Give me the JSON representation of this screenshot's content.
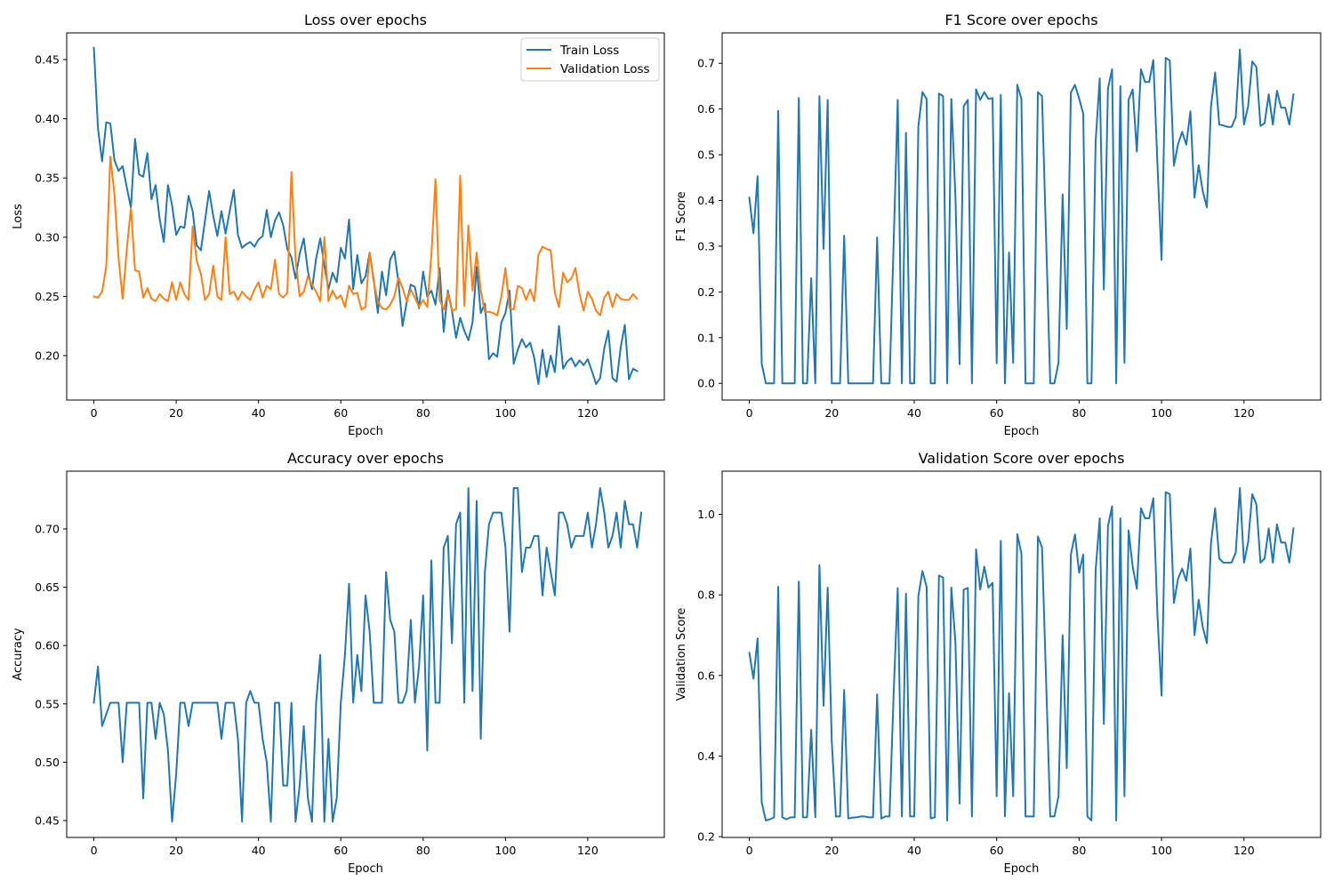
{
  "chart_data": [
    {
      "id": "loss",
      "type": "line",
      "title": "Loss over epochs",
      "xlabel": "Epoch",
      "ylabel": "Loss",
      "xlim": [
        -6.6,
        138.6
      ],
      "ylim": [
        0.1625,
        0.4725
      ],
      "xticks": [
        0,
        20,
        40,
        60,
        80,
        100,
        120
      ],
      "yticks": [
        0.2,
        0.25,
        0.3,
        0.35,
        0.4,
        0.45
      ],
      "ytick_labels": [
        "0.20",
        "0.25",
        "0.30",
        "0.35",
        "0.40",
        "0.45"
      ],
      "grid": false,
      "legend": "top-right",
      "series": [
        {
          "name": "Train Loss",
          "color": "#1f77b4",
          "values": [
            0.46,
            0.392,
            0.364,
            0.397,
            0.396,
            0.365,
            0.356,
            0.36,
            0.342,
            0.325,
            0.383,
            0.353,
            0.351,
            0.371,
            0.332,
            0.344,
            0.315,
            0.296,
            0.344,
            0.327,
            0.302,
            0.309,
            0.308,
            0.335,
            0.322,
            0.293,
            0.289,
            0.314,
            0.339,
            0.318,
            0.301,
            0.322,
            0.303,
            0.322,
            0.34,
            0.302,
            0.291,
            0.294,
            0.296,
            0.292,
            0.298,
            0.301,
            0.323,
            0.3,
            0.314,
            0.321,
            0.31,
            0.29,
            0.283,
            0.265,
            0.286,
            0.299,
            0.271,
            0.256,
            0.282,
            0.299,
            0.276,
            0.256,
            0.27,
            0.262,
            0.291,
            0.282,
            0.315,
            0.256,
            0.285,
            0.261,
            0.267,
            0.287,
            0.264,
            0.236,
            0.271,
            0.251,
            0.281,
            0.288,
            0.262,
            0.225,
            0.245,
            0.26,
            0.258,
            0.24,
            0.271,
            0.25,
            0.255,
            0.243,
            0.274,
            0.22,
            0.255,
            0.238,
            0.215,
            0.232,
            0.221,
            0.213,
            0.228,
            0.275,
            0.236,
            0.244,
            0.197,
            0.202,
            0.199,
            0.228,
            0.236,
            0.255,
            0.193,
            0.205,
            0.214,
            0.207,
            0.211,
            0.198,
            0.176,
            0.205,
            0.182,
            0.2,
            0.186,
            0.225,
            0.189,
            0.195,
            0.198,
            0.191,
            0.196,
            0.192,
            0.197,
            0.187,
            0.176,
            0.181,
            0.206,
            0.221,
            0.181,
            0.178,
            0.207,
            0.226,
            0.18,
            0.189,
            0.187
          ]
        },
        {
          "name": "Validation Loss",
          "color": "#ff7f0e",
          "values": [
            0.25,
            0.249,
            0.254,
            0.275,
            0.368,
            0.336,
            0.282,
            0.248,
            0.29,
            0.325,
            0.272,
            0.271,
            0.249,
            0.257,
            0.248,
            0.246,
            0.252,
            0.248,
            0.246,
            0.262,
            0.247,
            0.262,
            0.252,
            0.247,
            0.309,
            0.28,
            0.269,
            0.247,
            0.252,
            0.276,
            0.25,
            0.247,
            0.3,
            0.252,
            0.254,
            0.247,
            0.254,
            0.25,
            0.247,
            0.256,
            0.262,
            0.249,
            0.259,
            0.256,
            0.281,
            0.252,
            0.249,
            0.253,
            0.355,
            0.281,
            0.25,
            0.254,
            0.267,
            0.26,
            0.254,
            0.246,
            0.3,
            0.246,
            0.255,
            0.248,
            0.251,
            0.241,
            0.259,
            0.252,
            0.253,
            0.239,
            0.241,
            0.287,
            0.262,
            0.246,
            0.24,
            0.239,
            0.243,
            0.25,
            0.266,
            0.257,
            0.246,
            0.256,
            0.249,
            0.241,
            0.247,
            0.241,
            0.285,
            0.349,
            0.247,
            0.239,
            0.253,
            0.238,
            0.239,
            0.352,
            0.242,
            0.31,
            0.255,
            0.287,
            0.255,
            0.237,
            0.237,
            0.236,
            0.234,
            0.25,
            0.274,
            0.24,
            0.239,
            0.259,
            0.257,
            0.247,
            0.256,
            0.246,
            0.285,
            0.292,
            0.29,
            0.289,
            0.253,
            0.241,
            0.27,
            0.262,
            0.265,
            0.274,
            0.252,
            0.238,
            0.254,
            0.248,
            0.238,
            0.234,
            0.249,
            0.254,
            0.241,
            0.252,
            0.248,
            0.247,
            0.247,
            0.252,
            0.248
          ]
        }
      ]
    },
    {
      "id": "f1",
      "type": "line",
      "title": "F1 Score over epochs",
      "xlabel": "Epoch",
      "ylabel": "F1 Score",
      "xlim": [
        -6.6,
        138.6
      ],
      "ylim": [
        -0.0365,
        0.7665
      ],
      "xticks": [
        0,
        20,
        40,
        60,
        80,
        100,
        120
      ],
      "yticks": [
        0.0,
        0.1,
        0.2,
        0.3,
        0.4,
        0.5,
        0.6,
        0.7
      ],
      "ytick_labels": [
        "0.0",
        "0.1",
        "0.2",
        "0.3",
        "0.4",
        "0.5",
        "0.6",
        "0.7"
      ],
      "grid": false,
      "legend": "none",
      "series": [
        {
          "name": "F1 Score",
          "color": "#1f77b4",
          "values": [
            0.406,
            0.328,
            0.453,
            0.043,
            0.0,
            0.0,
            0.0,
            0.596,
            0.0,
            0.0,
            0.0,
            0.0,
            0.624,
            0.0,
            0.0,
            0.23,
            0.0,
            0.628,
            0.294,
            0.62,
            0.0,
            0.0,
            0.0,
            0.323,
            0.0,
            0.0,
            0.0,
            0.0,
            0.0,
            0.0,
            0.0,
            0.319,
            0.0,
            0.0,
            0.0,
            0.305,
            0.62,
            0.0,
            0.548,
            0.0,
            0.0,
            0.562,
            0.637,
            0.622,
            0.0,
            0.0,
            0.634,
            0.628,
            0.0,
            0.622,
            0.408,
            0.042,
            0.606,
            0.62,
            0.0,
            0.643,
            0.62,
            0.637,
            0.622,
            0.624,
            0.044,
            0.631,
            0.0,
            0.286,
            0.045,
            0.653,
            0.622,
            0.0,
            0.0,
            0.0,
            0.637,
            0.628,
            0.315,
            0.0,
            0.0,
            0.045,
            0.413,
            0.119,
            0.636,
            0.653,
            0.623,
            0.59,
            0.0,
            0.0,
            0.528,
            0.667,
            0.205,
            0.645,
            0.687,
            0.0,
            0.65,
            0.045,
            0.62,
            0.643,
            0.507,
            0.687,
            0.659,
            0.659,
            0.707,
            0.48,
            0.27,
            0.712,
            0.706,
            0.476,
            0.523,
            0.55,
            0.522,
            0.595,
            0.406,
            0.477,
            0.42,
            0.385,
            0.606,
            0.68,
            0.566,
            0.564,
            0.561,
            0.561,
            0.582,
            0.73,
            0.566,
            0.606,
            0.704,
            0.692,
            0.563,
            0.569,
            0.632,
            0.566,
            0.64,
            0.603,
            0.603,
            0.566,
            0.632
          ]
        }
      ]
    },
    {
      "id": "accuracy",
      "type": "line",
      "title": "Accuracy over epochs",
      "xlabel": "Epoch",
      "ylabel": "Accuracy",
      "xlim": [
        -6.6,
        138.6
      ],
      "ylim": [
        0.4355,
        0.7495
      ],
      "xticks": [
        0,
        20,
        40,
        60,
        80,
        100,
        120
      ],
      "yticks": [
        0.45,
        0.5,
        0.55,
        0.6,
        0.65,
        0.7
      ],
      "ytick_labels": [
        "0.45",
        "0.50",
        "0.55",
        "0.60",
        "0.65",
        "0.70"
      ],
      "grid": false,
      "legend": "none",
      "series": [
        {
          "name": "Accuracy",
          "color": "#1f77b4",
          "values": [
            0.551,
            0.582,
            0.531,
            0.541,
            0.551,
            0.551,
            0.551,
            0.5,
            0.551,
            0.551,
            0.551,
            0.551,
            0.469,
            0.551,
            0.551,
            0.52,
            0.551,
            0.541,
            0.51,
            0.449,
            0.49,
            0.551,
            0.551,
            0.531,
            0.551,
            0.551,
            0.551,
            0.551,
            0.551,
            0.551,
            0.551,
            0.52,
            0.551,
            0.551,
            0.551,
            0.52,
            0.449,
            0.551,
            0.561,
            0.551,
            0.551,
            0.52,
            0.5,
            0.449,
            0.551,
            0.551,
            0.48,
            0.48,
            0.551,
            0.449,
            0.48,
            0.531,
            0.469,
            0.449,
            0.551,
            0.592,
            0.449,
            0.52,
            0.449,
            0.469,
            0.551,
            0.592,
            0.653,
            0.551,
            0.592,
            0.561,
            0.643,
            0.612,
            0.551,
            0.551,
            0.551,
            0.663,
            0.622,
            0.612,
            0.551,
            0.551,
            0.561,
            0.622,
            0.551,
            0.582,
            0.643,
            0.51,
            0.673,
            0.551,
            0.551,
            0.684,
            0.694,
            0.602,
            0.704,
            0.714,
            0.551,
            0.735,
            0.561,
            0.724,
            0.52,
            0.663,
            0.704,
            0.714,
            0.714,
            0.714,
            0.684,
            0.612,
            0.735,
            0.735,
            0.663,
            0.684,
            0.684,
            0.694,
            0.694,
            0.643,
            0.684,
            0.663,
            0.643,
            0.714,
            0.714,
            0.704,
            0.684,
            0.694,
            0.694,
            0.694,
            0.714,
            0.684,
            0.704,
            0.735,
            0.714,
            0.684,
            0.694,
            0.714,
            0.684,
            0.724,
            0.704,
            0.704,
            0.684,
            0.714
          ]
        }
      ]
    },
    {
      "id": "validation_score",
      "type": "line",
      "title": "Validation Score over epochs",
      "xlabel": "Epoch",
      "ylabel": "Validation Score",
      "xlim": [
        -6.6,
        138.6
      ],
      "ylim": [
        0.198,
        1.107
      ],
      "xticks": [
        0,
        20,
        40,
        60,
        80,
        100,
        120
      ],
      "yticks": [
        0.2,
        0.4,
        0.6,
        0.8,
        1.0
      ],
      "ytick_labels": [
        "0.2",
        "0.4",
        "0.6",
        "0.8",
        "1.0"
      ],
      "grid": false,
      "legend": "none",
      "series": [
        {
          "name": "Validation Score",
          "color": "#1f77b4",
          "values": [
            0.656,
            0.592,
            0.692,
            0.285,
            0.24,
            0.243,
            0.248,
            0.82,
            0.248,
            0.243,
            0.248,
            0.248,
            0.833,
            0.248,
            0.248,
            0.465,
            0.248,
            0.874,
            0.525,
            0.818,
            0.436,
            0.25,
            0.25,
            0.564,
            0.245,
            0.247,
            0.248,
            0.25,
            0.25,
            0.248,
            0.248,
            0.553,
            0.245,
            0.25,
            0.25,
            0.553,
            0.817,
            0.25,
            0.803,
            0.25,
            0.25,
            0.797,
            0.859,
            0.82,
            0.245,
            0.248,
            0.848,
            0.843,
            0.24,
            0.818,
            0.682,
            0.282,
            0.813,
            0.817,
            0.25,
            0.913,
            0.813,
            0.87,
            0.818,
            0.83,
            0.3,
            0.934,
            0.25,
            0.556,
            0.3,
            0.951,
            0.903,
            0.25,
            0.25,
            0.25,
            0.945,
            0.918,
            0.585,
            0.25,
            0.25,
            0.3,
            0.7,
            0.37,
            0.9,
            0.95,
            0.855,
            0.9,
            0.25,
            0.24,
            0.86,
            0.99,
            0.48,
            0.97,
            1.02,
            0.24,
            0.99,
            0.3,
            0.96,
            0.87,
            0.815,
            1.015,
            0.99,
            0.99,
            1.04,
            0.75,
            0.55,
            1.055,
            1.05,
            0.78,
            0.84,
            0.865,
            0.835,
            0.915,
            0.7,
            0.788,
            0.72,
            0.68,
            0.93,
            1.015,
            0.89,
            0.88,
            0.88,
            0.88,
            0.905,
            1.065,
            0.88,
            0.93,
            1.05,
            1.025,
            0.88,
            0.89,
            0.965,
            0.88,
            0.975,
            0.93,
            0.93,
            0.88,
            0.965
          ]
        }
      ]
    }
  ]
}
